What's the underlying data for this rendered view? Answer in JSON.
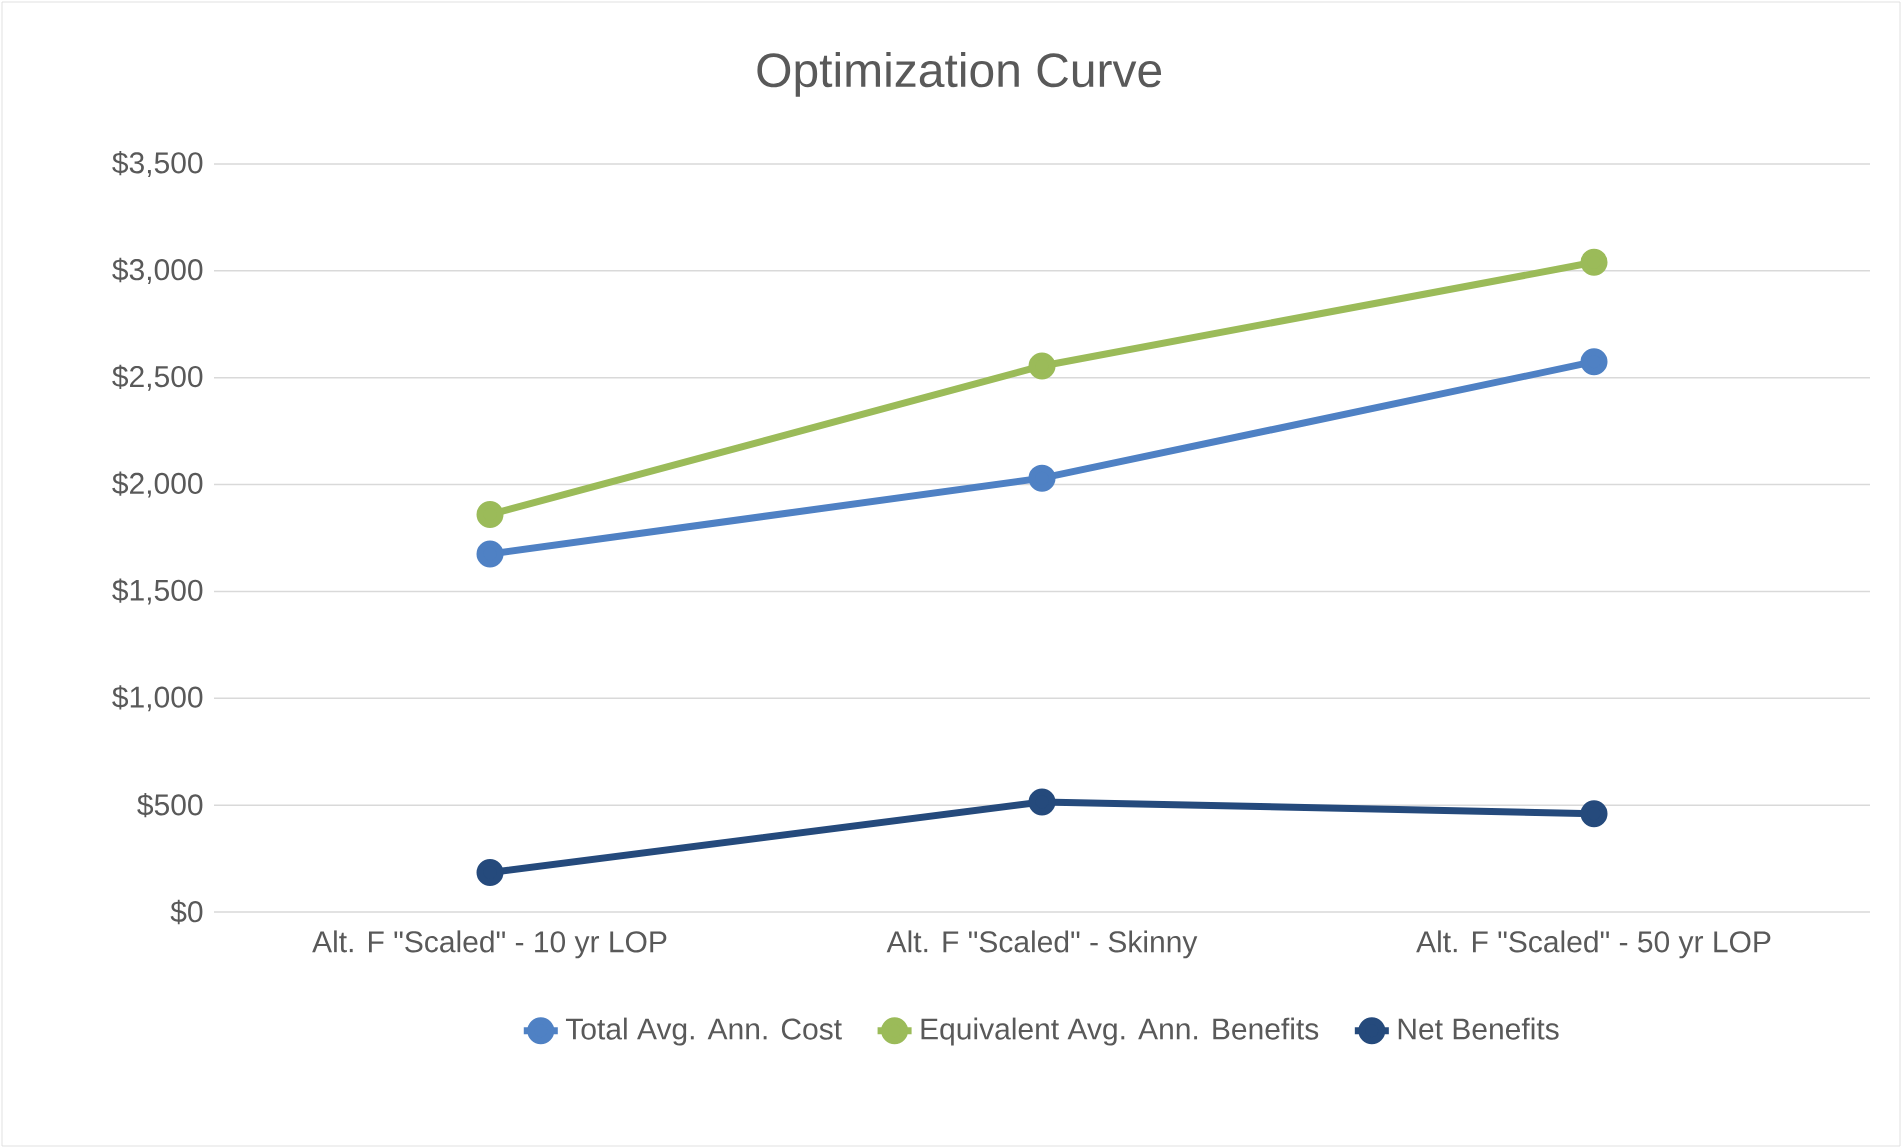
{
  "chart_data": {
    "type": "line",
    "title": "Optimization Curve",
    "categories": [
      "Alt. F \"Scaled\" - 10 yr LOP",
      "Alt. F \"Scaled\" - Skinny",
      "Alt. F \"Scaled\" - 50 yr LOP"
    ],
    "series": [
      {
        "name": "Total Avg. Ann. Cost",
        "color": "#4f81c4",
        "values": [
          1675,
          2030,
          2575
        ]
      },
      {
        "name": "Equivalent Avg. Ann. Benefits",
        "color": "#9bbb59",
        "values": [
          1860,
          2555,
          3040
        ]
      },
      {
        "name": "Net Benefits",
        "color": "#254a7c",
        "values": [
          185,
          515,
          460
        ]
      }
    ],
    "ylim": [
      0,
      3500
    ],
    "yticks": [
      {
        "value": 0,
        "label": "$0"
      },
      {
        "value": 500,
        "label": "$500"
      },
      {
        "value": 1000,
        "label": "$1,000"
      },
      {
        "value": 1500,
        "label": "$1,500"
      },
      {
        "value": 2000,
        "label": "$2,000"
      },
      {
        "value": 2500,
        "label": "$2,500"
      },
      {
        "value": 3000,
        "label": "$3,000"
      },
      {
        "value": 3500,
        "label": "$3,500"
      }
    ],
    "grid": "y",
    "legend": "bottom",
    "marker": "circle",
    "line_style": "solid"
  }
}
